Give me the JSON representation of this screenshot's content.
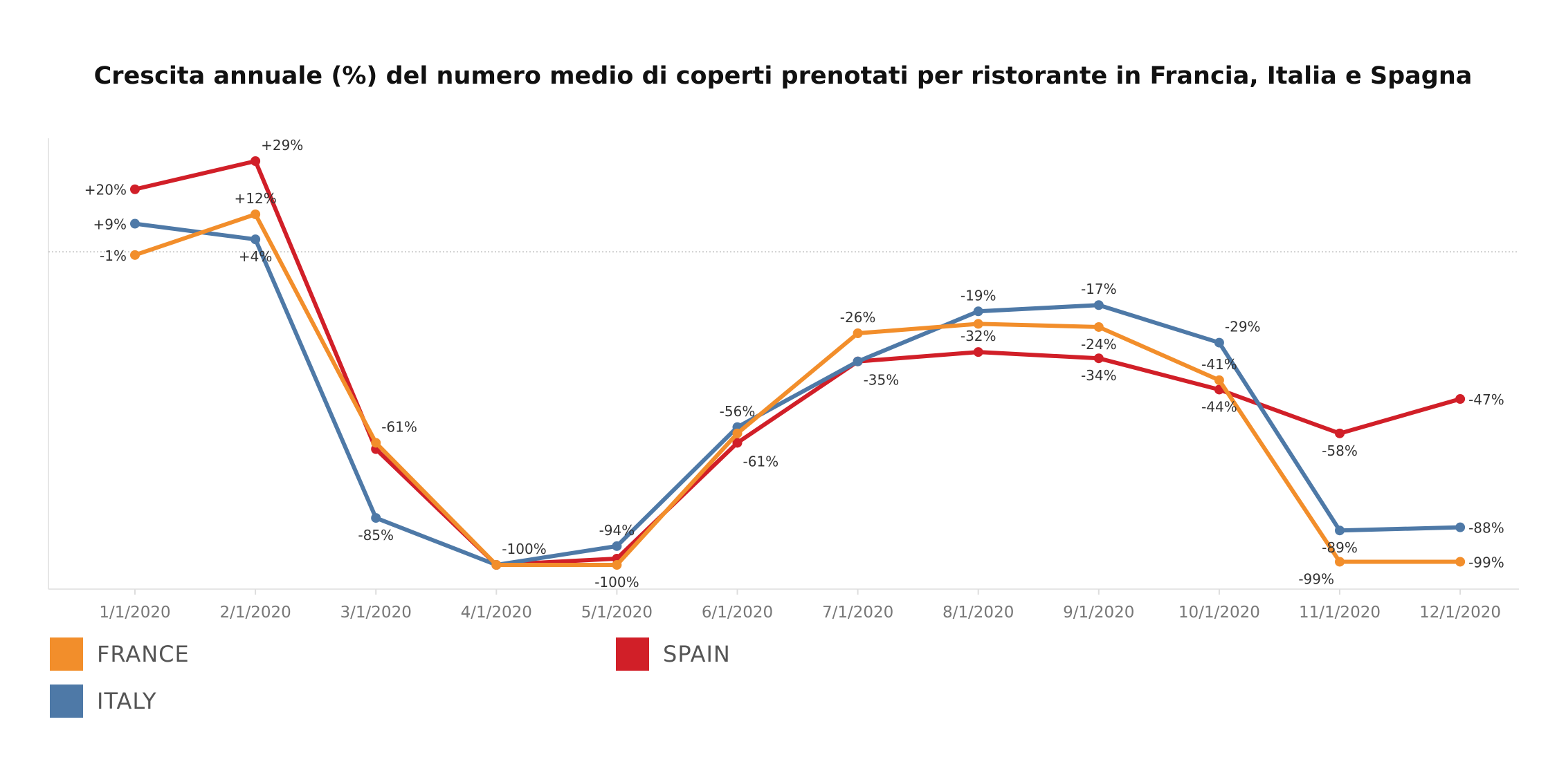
{
  "chart_data": {
    "type": "line",
    "title": "Crescita annuale (%) del numero medio di coperti prenotati per ristorante in Francia, Italia e Spagna",
    "xlabel": "",
    "ylabel": "",
    "categories": [
      "1/1/2020",
      "2/1/2020",
      "3/1/2020",
      "4/1/2020",
      "5/1/2020",
      "6/1/2020",
      "7/1/2020",
      "8/1/2020",
      "9/1/2020",
      "10/1/2020",
      "11/1/2020",
      "12/1/2020"
    ],
    "ylim": [
      -100,
      29
    ],
    "reference_line": 0,
    "grid": false,
    "legend_position": "bottom",
    "series": [
      {
        "name": "FRANCE",
        "color": "#F28E2B",
        "values": [
          -1,
          12,
          -61,
          -100,
          -100,
          -58,
          -26,
          -23,
          -24,
          -41,
          -99,
          -99
        ],
        "labels": [
          "-1%",
          "+12%",
          "-61%",
          null,
          "-100%",
          null,
          "-26%",
          null,
          "-24%",
          "-41%",
          "-99%",
          "-99%"
        ],
        "label_pos": [
          "left",
          "above",
          "above-right",
          null,
          "below",
          null,
          "above",
          null,
          "below",
          "above",
          "below-left",
          "right"
        ]
      },
      {
        "name": "ITALY",
        "color": "#4E79A7",
        "values": [
          9,
          4,
          -85,
          -100,
          -94,
          -56,
          -35,
          -19,
          -17,
          -29,
          -89,
          -88
        ],
        "labels": [
          "+9%",
          "+4%",
          "-85%",
          "-100%",
          "-94%",
          "-56%",
          null,
          "-19%",
          "-17%",
          "-29%",
          "-89%",
          "-88%"
        ],
        "label_pos": [
          "left",
          "below",
          "below",
          "above-right",
          "above",
          "above",
          null,
          "above",
          "above",
          "above-right",
          "below",
          "right"
        ]
      },
      {
        "name": "SPAIN",
        "color": "#D11F28",
        "values": [
          20,
          29,
          -63,
          -100,
          -98,
          -61,
          -35,
          -32,
          -34,
          -44,
          -58,
          -47
        ],
        "labels": [
          "+20%",
          "+29%",
          null,
          null,
          null,
          "-61%",
          "-35%",
          "-32%",
          "-34%",
          "-44%",
          "-58%",
          "-47%"
        ],
        "label_pos": [
          "left",
          "above-right",
          null,
          null,
          null,
          "below-right",
          "below-right",
          "above",
          "below",
          "below",
          "below",
          "right"
        ]
      }
    ]
  },
  "legend": [
    {
      "label": "FRANCE",
      "color": "#F28E2B"
    },
    {
      "label": "SPAIN",
      "color": "#D11F28"
    },
    {
      "label": "ITALY",
      "color": "#4E79A7"
    }
  ]
}
